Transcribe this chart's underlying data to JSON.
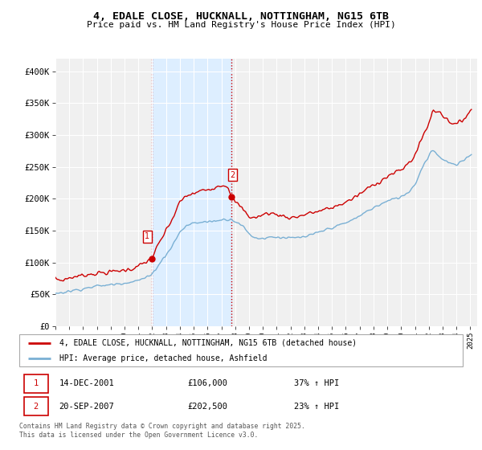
{
  "title": "4, EDALE CLOSE, HUCKNALL, NOTTINGHAM, NG15 6TB",
  "subtitle": "Price paid vs. HM Land Registry's House Price Index (HPI)",
  "ylabel_ticks": [
    "£0",
    "£50K",
    "£100K",
    "£150K",
    "£200K",
    "£250K",
    "£300K",
    "£350K",
    "£400K"
  ],
  "ytick_values": [
    0,
    50000,
    100000,
    150000,
    200000,
    250000,
    300000,
    350000,
    400000
  ],
  "ylim": [
    0,
    420000
  ],
  "xlim_start": 1995.0,
  "xlim_end": 2025.5,
  "xtick_years": [
    1995,
    1996,
    1997,
    1998,
    1999,
    2000,
    2001,
    2002,
    2003,
    2004,
    2005,
    2006,
    2007,
    2008,
    2009,
    2010,
    2011,
    2012,
    2013,
    2014,
    2015,
    2016,
    2017,
    2018,
    2019,
    2020,
    2021,
    2022,
    2023,
    2024,
    2025
  ],
  "sale1_x": 2001.95,
  "sale1_y": 106000,
  "sale1_label": "1",
  "sale1_date": "14-DEC-2001",
  "sale1_price": "£106,000",
  "sale1_hpi": "37% ↑ HPI",
  "sale2_x": 2007.72,
  "sale2_y": 202500,
  "sale2_label": "2",
  "sale2_date": "20-SEP-2007",
  "sale2_price": "£202,500",
  "sale2_hpi": "23% ↑ HPI",
  "line1_color": "#cc0000",
  "line2_color": "#7ab0d4",
  "shade_color": "#ddeeff",
  "vline_color": "#cc0000",
  "background_color": "#f0f0f0",
  "grid_color": "#ffffff",
  "legend1_label": "4, EDALE CLOSE, HUCKNALL, NOTTINGHAM, NG15 6TB (detached house)",
  "legend2_label": "HPI: Average price, detached house, Ashfield",
  "footer": "Contains HM Land Registry data © Crown copyright and database right 2025.\nThis data is licensed under the Open Government Licence v3.0."
}
